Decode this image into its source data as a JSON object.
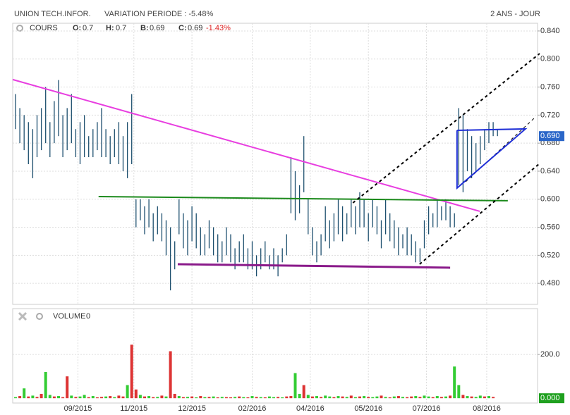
{
  "header": {
    "title": "UNION TECH.INFOR.",
    "variation": "VARIATION PERIODE : -5.48%",
    "period": "2 ANS - JOUR"
  },
  "info": {
    "label": "COURS",
    "o_label": "O:",
    "o": "0.7",
    "h_label": "H:",
    "h": "0.7",
    "b_label": "B:",
    "b": "0.69",
    "c_label": "C:",
    "c": "0.69",
    "change": "-1.43%"
  },
  "volume_info": {
    "label": "VOLUME",
    "value": "0"
  },
  "chart_data": [
    {
      "type": "hilo",
      "color": "#1d4f6e",
      "grid": true,
      "ylim": [
        0.45,
        0.851
      ],
      "yticks": [
        {
          "value": 0.84,
          "label": "0.840"
        },
        {
          "value": 0.8,
          "label": "0.800"
        },
        {
          "value": 0.76,
          "label": "0.760"
        },
        {
          "value": 0.72,
          "label": "0.720"
        },
        {
          "value": 0.68,
          "label": "0.680"
        },
        {
          "value": 0.64,
          "label": "0.640"
        },
        {
          "value": 0.6,
          "label": "0.600"
        },
        {
          "value": 0.56,
          "label": "0.560"
        },
        {
          "value": 0.52,
          "label": "0.520"
        },
        {
          "value": 0.48,
          "label": "0.480"
        }
      ],
      "last": {
        "value": 0.69,
        "label": "0.690",
        "color": "#2a66c8"
      },
      "highs": [
        0.75,
        0.73,
        0.72,
        0.71,
        0.7,
        0.72,
        0.73,
        0.76,
        0.71,
        0.74,
        0.77,
        0.72,
        0.73,
        0.75,
        0.7,
        0.71,
        0.72,
        0.69,
        0.7,
        0.71,
        0.73,
        0.7,
        0.69,
        0.7,
        0.71,
        0.69,
        0.71,
        0.75,
        0.6,
        0.6,
        0.59,
        0.6,
        0.58,
        0.59,
        0.58,
        0.57,
        0.56,
        0.54,
        0.6,
        0.58,
        0.57,
        0.59,
        0.58,
        0.56,
        0.55,
        0.57,
        0.56,
        0.55,
        0.54,
        0.56,
        0.55,
        0.53,
        0.54,
        0.55,
        0.53,
        0.54,
        0.52,
        0.53,
        0.54,
        0.52,
        0.53,
        0.52,
        0.53,
        0.55,
        0.66,
        0.64,
        0.62,
        0.69,
        0.6,
        0.56,
        0.54,
        0.55,
        0.59,
        0.57,
        0.58,
        0.6,
        0.59,
        0.58,
        0.6,
        0.59,
        0.61,
        0.6,
        0.58,
        0.6,
        0.59,
        0.57,
        0.6,
        0.58,
        0.57,
        0.56,
        0.55,
        0.56,
        0.55,
        0.54,
        0.53,
        0.57,
        0.59,
        0.58,
        0.6,
        0.59,
        0.6,
        0.59,
        0.58,
        0.73,
        0.72,
        0.7,
        0.69,
        0.68,
        0.69,
        0.7,
        0.71,
        0.71,
        0.7
      ],
      "lows": [
        0.7,
        0.68,
        0.67,
        0.65,
        0.63,
        0.66,
        0.67,
        0.68,
        0.66,
        0.68,
        0.69,
        0.66,
        0.67,
        0.68,
        0.66,
        0.65,
        0.66,
        0.66,
        0.66,
        0.67,
        0.66,
        0.66,
        0.65,
        0.66,
        0.65,
        0.64,
        0.63,
        0.65,
        0.56,
        0.57,
        0.55,
        0.56,
        0.54,
        0.55,
        0.54,
        0.52,
        0.47,
        0.5,
        0.55,
        0.53,
        0.52,
        0.54,
        0.53,
        0.52,
        0.52,
        0.53,
        0.52,
        0.51,
        0.51,
        0.52,
        0.51,
        0.5,
        0.51,
        0.51,
        0.5,
        0.5,
        0.49,
        0.5,
        0.51,
        0.5,
        0.5,
        0.49,
        0.51,
        0.52,
        0.58,
        0.57,
        0.58,
        0.61,
        0.55,
        0.52,
        0.51,
        0.52,
        0.54,
        0.53,
        0.54,
        0.55,
        0.54,
        0.55,
        0.56,
        0.55,
        0.56,
        0.56,
        0.54,
        0.56,
        0.55,
        0.53,
        0.55,
        0.54,
        0.53,
        0.52,
        0.53,
        0.52,
        0.52,
        0.51,
        0.51,
        0.53,
        0.55,
        0.56,
        0.56,
        0.57,
        0.57,
        0.56,
        0.56,
        0.62,
        0.61,
        0.64,
        0.63,
        0.64,
        0.65,
        0.67,
        0.68,
        0.69,
        0.69
      ],
      "trendlines": [
        {
          "color": "#e83ee0",
          "width": 2,
          "dash": false,
          "points": [
            [
              -0.66,
              0.7707
            ],
            [
              107.9,
              0.5827
            ]
          ]
        },
        {
          "color": "#1c8a1c",
          "width": 2,
          "dash": false,
          "points": [
            [
              19.3,
              0.6038
            ],
            [
              114.4,
              0.5978
            ]
          ]
        },
        {
          "color": "#8a1a8a",
          "width": 3,
          "dash": false,
          "points": [
            [
              37.7,
              0.5073
            ],
            [
              101,
              0.5023
            ]
          ]
        },
        {
          "color": "#000000",
          "width": 2,
          "dash": true,
          "points": [
            [
              78.4,
              0.5948
            ],
            [
              121.8,
              0.8078
            ]
          ]
        },
        {
          "color": "#000000",
          "width": 2,
          "dash": true,
          "points": [
            [
              93.9,
              0.5073
            ],
            [
              121.8,
              0.651
            ]
          ]
        },
        {
          "color": "#000000",
          "width": 1,
          "dash": true,
          "points": [
            [
              104.6,
              0.6249
            ],
            [
              120.5,
              0.7154
            ]
          ]
        },
        {
          "color": "#1f2fd6",
          "width": 2,
          "dash": false,
          "points": [
            [
              102.6,
              0.6983
            ],
            [
              118.5,
              0.7003
            ],
            [
              102.6,
              0.6159
            ],
            [
              102.6,
              0.6983
            ]
          ]
        }
      ]
    },
    {
      "type": "bar",
      "grid": true,
      "ylim": [
        -22,
        410
      ],
      "yticks": [
        {
          "value": 200,
          "label": "200.0"
        }
      ],
      "last": {
        "value": 0,
        "label": "0.000",
        "color": "#1fa01f"
      },
      "values": [
        5,
        10,
        45,
        8,
        12,
        6,
        20,
        120,
        15,
        8,
        10,
        5,
        100,
        12,
        6,
        8,
        15,
        5,
        10,
        4,
        6,
        8,
        10,
        5,
        12,
        8,
        60,
        245,
        40,
        15,
        8,
        10,
        5,
        6,
        12,
        8,
        215,
        20,
        10,
        5,
        6,
        8,
        4,
        10,
        5,
        6,
        8,
        4,
        6,
        5,
        4,
        6,
        8,
        5,
        4,
        10,
        6,
        5,
        4,
        8,
        5,
        6,
        4,
        8,
        10,
        115,
        20,
        60,
        15,
        8,
        10,
        6,
        12,
        8,
        5,
        10,
        8,
        6,
        12,
        5,
        8,
        10,
        6,
        5,
        8,
        12,
        6,
        4,
        8,
        10,
        6,
        5,
        8,
        10,
        6,
        12,
        8,
        5,
        10,
        6,
        8,
        12,
        145,
        60,
        15,
        10,
        8,
        6,
        12,
        8,
        10,
        6,
        0
      ],
      "colors": [
        "#3c3",
        "#d33",
        "#3c3",
        "#d33",
        "#3c3",
        "#d33",
        "#d33",
        "#3c3",
        "#3c3",
        "#d33",
        "#3c3",
        "#d33",
        "#d33",
        "#3c3",
        "#d33",
        "#3c3",
        "#3c3",
        "#d33",
        "#3c3",
        "#d33",
        "#d33",
        "#3c3",
        "#d33",
        "#3c3",
        "#d33",
        "#d33",
        "#3c3",
        "#d33",
        "#d33",
        "#3c3",
        "#d33",
        "#3c3",
        "#d33",
        "#3c3",
        "#d33",
        "#3c3",
        "#d33",
        "#d33",
        "#3c3",
        "#d33",
        "#3c3",
        "#d33",
        "#3c3",
        "#d33",
        "#3c3",
        "#d33",
        "#3c3",
        "#d33",
        "#3c3",
        "#d33",
        "#d33",
        "#3c3",
        "#d33",
        "#3c3",
        "#d33",
        "#3c3",
        "#d33",
        "#3c3",
        "#d33",
        "#3c3",
        "#3c3",
        "#d33",
        "#3c3",
        "#d33",
        "#d33",
        "#3c3",
        "#3c3",
        "#d33",
        "#3c3",
        "#d33",
        "#3c3",
        "#d33",
        "#3c3",
        "#3c3",
        "#d33",
        "#3c3",
        "#d33",
        "#3c3",
        "#d33",
        "#3c3",
        "#d33",
        "#3c3",
        "#d33",
        "#3c3",
        "#3c3",
        "#d33",
        "#3c3",
        "#d33",
        "#3c3",
        "#d33",
        "#3c3",
        "#d33",
        "#d33",
        "#3c3",
        "#d33",
        "#3c3",
        "#3c3",
        "#d33",
        "#3c3",
        "#d33",
        "#3c3",
        "#d33",
        "#3c3",
        "#3c3",
        "#d33",
        "#3c3",
        "#d33",
        "#3c3",
        "#3c3",
        "#d33",
        "#3c3",
        "#d33",
        "#3c3"
      ],
      "xticks": [
        {
          "value": 14.5,
          "label": "09/2015"
        },
        {
          "value": 27.5,
          "label": "11/2015"
        },
        {
          "value": 41,
          "label": "12/2015"
        },
        {
          "value": 55,
          "label": "02/2016"
        },
        {
          "value": 68.5,
          "label": "04/2016"
        },
        {
          "value": 82,
          "label": "05/2016"
        },
        {
          "value": 95.5,
          "label": "07/2016"
        },
        {
          "value": 109.5,
          "label": "08/2016"
        }
      ]
    }
  ]
}
